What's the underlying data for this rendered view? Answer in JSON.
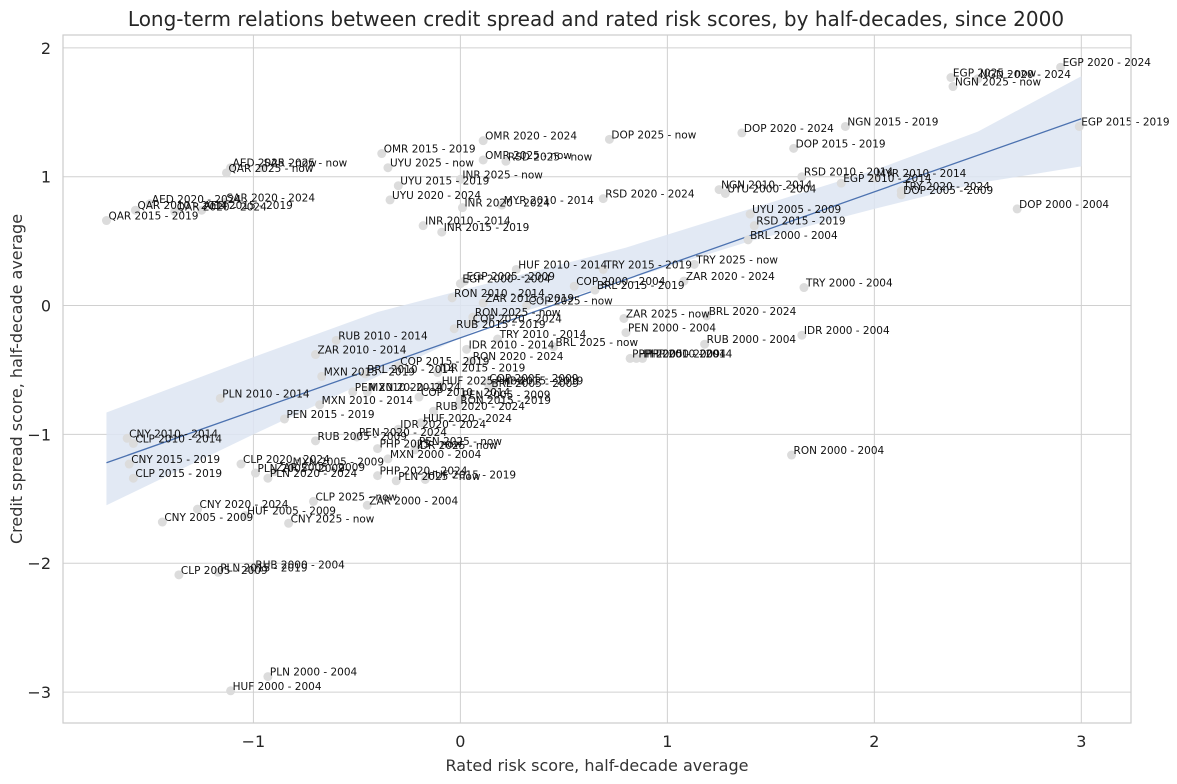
{
  "chart_data": {
    "type": "scatter",
    "title": "Long-term relations between credit spread and rated risk scores, by half-decades, since 2000",
    "xlabel": "Rated risk score, half-decade average",
    "ylabel": "Credit spread score, half-decade average",
    "xlim": [
      -1.92,
      3.24
    ],
    "ylim": [
      -3.24,
      2.1
    ],
    "xticks": [
      {
        "v": -1,
        "label": "−1"
      },
      {
        "v": 0,
        "label": "0"
      },
      {
        "v": 1,
        "label": "1"
      },
      {
        "v": 2,
        "label": "2"
      },
      {
        "v": 3,
        "label": "3"
      }
    ],
    "yticks": [
      {
        "v": 2,
        "label": "2"
      },
      {
        "v": 1,
        "label": "1"
      },
      {
        "v": 0,
        "label": "0"
      },
      {
        "v": -1,
        "label": "−1"
      },
      {
        "v": -2,
        "label": "−2"
      },
      {
        "v": -3,
        "label": "−3"
      }
    ],
    "grid": true,
    "regression": {
      "x0": -1.71,
      "y0": -1.22,
      "x1": 3.0,
      "y1": 1.45
    },
    "confidence_band": {
      "upper": [
        [
          -1.71,
          -0.83
        ],
        [
          -1.0,
          -0.4
        ],
        [
          -0.4,
          -0.05
        ],
        [
          0.2,
          0.2
        ],
        [
          0.8,
          0.45
        ],
        [
          1.4,
          0.75
        ],
        [
          2.0,
          1.05
        ],
        [
          2.5,
          1.35
        ],
        [
          3.0,
          1.78
        ]
      ],
      "lower": [
        [
          -1.71,
          -1.55
        ],
        [
          -1.0,
          -1.0
        ],
        [
          -0.4,
          -0.55
        ],
        [
          0.2,
          -0.1
        ],
        [
          0.8,
          0.2
        ],
        [
          1.4,
          0.5
        ],
        [
          2.0,
          0.75
        ],
        [
          2.5,
          0.95
        ],
        [
          3.0,
          1.08
        ]
      ]
    },
    "points": [
      {
        "label": "EGP 2020 - 2024",
        "x": 2.9,
        "y": 1.85
      },
      {
        "label": "NGN 2020 - 2024",
        "x": 2.5,
        "y": 1.76
      },
      {
        "label": "EGP 2025 - now",
        "x": 2.37,
        "y": 1.77
      },
      {
        "label": "NGN 2025 - now",
        "x": 2.38,
        "y": 1.7
      },
      {
        "label": "NGN 2015 - 2019",
        "x": 1.86,
        "y": 1.39
      },
      {
        "label": "EGP 2015 - 2019",
        "x": 2.99,
        "y": 1.39
      },
      {
        "label": "DOP 2020 - 2024",
        "x": 1.36,
        "y": 1.34
      },
      {
        "label": "DOP 2015 - 2019",
        "x": 1.61,
        "y": 1.22
      },
      {
        "label": "DOP 2025 - now",
        "x": 0.72,
        "y": 1.29
      },
      {
        "label": "OMR 2020 - 2024",
        "x": 0.11,
        "y": 1.28
      },
      {
        "label": "OMR 2015 - 2019",
        "x": -0.38,
        "y": 1.18
      },
      {
        "label": "OMR 2025 - now",
        "x": 0.11,
        "y": 1.13
      },
      {
        "label": "RSD 2025 - now",
        "x": 0.22,
        "y": 1.12
      },
      {
        "label": "UYU 2025 - now",
        "x": -0.35,
        "y": 1.07
      },
      {
        "label": "AED 2025 - now",
        "x": -1.11,
        "y": 1.07
      },
      {
        "label": "SAR 2025 - now",
        "x": -0.96,
        "y": 1.07
      },
      {
        "label": "QAR 2025 - now",
        "x": -1.13,
        "y": 1.03
      },
      {
        "label": "INR 2025 - now",
        "x": 0,
        "y": 0.98
      },
      {
        "label": "UYU 2015 - 2019",
        "x": -0.3,
        "y": 0.93
      },
      {
        "label": "RSD 2010 - 2014",
        "x": 1.65,
        "y": 1.0
      },
      {
        "label": "MYR 2010 - 2014",
        "x": 2.0,
        "y": 0.99
      },
      {
        "label": "EGP 2010 - 2014",
        "x": 1.84,
        "y": 0.95
      },
      {
        "label": "NGN 2010 - 2014",
        "x": 1.25,
        "y": 0.9
      },
      {
        "label": "UYU 2000 - 2004",
        "x": 1.28,
        "y": 0.87
      },
      {
        "label": "TRY 2020 - 2024",
        "x": 2.13,
        "y": 0.89
      },
      {
        "label": "DOP 2005 - 2009",
        "x": 2.13,
        "y": 0.86
      },
      {
        "label": "RSD 2020 - 2024",
        "x": 0.69,
        "y": 0.83
      },
      {
        "label": "UYU 2020 - 2024",
        "x": -0.34,
        "y": 0.82
      },
      {
        "label": "MYR 2010 - 2014",
        "x": 0.2,
        "y": 0.78
      },
      {
        "label": "INR 2020 - 2024",
        "x": 0.01,
        "y": 0.76
      },
      {
        "label": "AED 2020 - 2024",
        "x": -1.5,
        "y": 0.79
      },
      {
        "label": "SAR 2020 - 2024",
        "x": -1.14,
        "y": 0.8
      },
      {
        "label": "QAR 2010 - 2014",
        "x": -1.57,
        "y": 0.74
      },
      {
        "label": "QAR 2020 - 2024",
        "x": -1.38,
        "y": 0.73
      },
      {
        "label": "AED 2015 - 2019",
        "x": -1.25,
        "y": 0.74
      },
      {
        "label": "QAR 2015 - 2019",
        "x": -1.71,
        "y": 0.66
      },
      {
        "label": "UYU 2005 - 2009",
        "x": 1.4,
        "y": 0.71
      },
      {
        "label": "DOP 2000 - 2004",
        "x": 2.69,
        "y": 0.75
      },
      {
        "label": "INR 2010 - 2014",
        "x": -0.18,
        "y": 0.62
      },
      {
        "label": "RSD 2015 - 2019",
        "x": 1.42,
        "y": 0.62
      },
      {
        "label": "INR 2015 - 2019",
        "x": -0.09,
        "y": 0.57
      },
      {
        "label": "BRL 2000 - 2004",
        "x": 1.39,
        "y": 0.51
      },
      {
        "label": "TRY 2025 - now",
        "x": 1.13,
        "y": 0.32
      },
      {
        "label": "HUF 2010 - 2014",
        "x": 0.27,
        "y": 0.28
      },
      {
        "label": "TRY 2015 - 2019",
        "x": 0.69,
        "y": 0.28
      },
      {
        "label": "ZAR 2020 - 2024",
        "x": 1.08,
        "y": 0.19
      },
      {
        "label": "EGP 2005 - 2009",
        "x": 0.02,
        "y": 0.19
      },
      {
        "label": "EGP 2000 - 2004",
        "x": 0.0,
        "y": 0.17
      },
      {
        "label": "COP 2000 - 2004",
        "x": 0.55,
        "y": 0.15
      },
      {
        "label": "BRL 2015 - 2019",
        "x": 0.65,
        "y": 0.12
      },
      {
        "label": "TRY 2000 - 2004",
        "x": 1.66,
        "y": 0.14
      },
      {
        "label": "RON 2010 - 2014",
        "x": -0.04,
        "y": 0.06
      },
      {
        "label": "ZAR 2015 - 2019",
        "x": 0.11,
        "y": 0.02
      },
      {
        "label": "COP 2025 - now",
        "x": 0.32,
        "y": 0.0
      },
      {
        "label": "RON 2025 - now",
        "x": 0.06,
        "y": -0.09
      },
      {
        "label": "BRL 2020 - 2024",
        "x": 1.19,
        "y": -0.08
      },
      {
        "label": "ZAR 2025 - now",
        "x": 0.79,
        "y": -0.1
      },
      {
        "label": "COP 2020 - 2024",
        "x": 0.05,
        "y": -0.14
      },
      {
        "label": "RUB 2015 - 2019",
        "x": -0.03,
        "y": -0.18
      },
      {
        "label": "PEN 2000 - 2004",
        "x": 0.8,
        "y": -0.21
      },
      {
        "label": "IDR 2000 - 2004",
        "x": 1.65,
        "y": -0.23
      },
      {
        "label": "TRY 2010 - 2014",
        "x": 0.18,
        "y": -0.26
      },
      {
        "label": "RUB 2010 - 2014",
        "x": -0.6,
        "y": -0.27
      },
      {
        "label": "RUB 2000 - 2004",
        "x": 1.18,
        "y": -0.3
      },
      {
        "label": "BRL 2025 - now",
        "x": 0.45,
        "y": -0.32
      },
      {
        "label": "IDR 2010 - 2014",
        "x": 0.03,
        "y": -0.34
      },
      {
        "label": "ZAR 2010 - 2014",
        "x": -0.7,
        "y": -0.38
      },
      {
        "label": "PHP 2005 - 2009",
        "x": 0.82,
        "y": -0.41
      },
      {
        "label": "PHP 2000 - 2004",
        "x": 0.85,
        "y": -0.41
      },
      {
        "label": "PHP 2010 - 2014",
        "x": 0.88,
        "y": -0.41
      },
      {
        "label": "RON 2020 - 2024",
        "x": 0.05,
        "y": -0.43
      },
      {
        "label": "COP 2015 - 2019",
        "x": -0.3,
        "y": -0.47
      },
      {
        "label": "IDR 2015 - 2019",
        "x": -0.11,
        "y": -0.52
      },
      {
        "label": "MXN 2015 - 2019",
        "x": -0.67,
        "y": -0.55
      },
      {
        "label": "BRL 2010 - 2014",
        "x": -0.46,
        "y": -0.53
      },
      {
        "label": "COP 2005 - 2009",
        "x": 0.13,
        "y": -0.6
      },
      {
        "label": "BRL 2005 - 2009",
        "x": 0.14,
        "y": -0.64
      },
      {
        "label": "HUF 2025 - now",
        "x": -0.1,
        "y": -0.62
      },
      {
        "label": "PHP 2015 - 2019",
        "x": 0.16,
        "y": -0.62
      },
      {
        "label": "PEN 2010 - 2014",
        "x": -0.52,
        "y": -0.67
      },
      {
        "label": "MXN 2020 - 2024",
        "x": -0.45,
        "y": -0.67
      },
      {
        "label": "COP 2010 - 2014",
        "x": -0.2,
        "y": -0.71
      },
      {
        "label": "PEN 2005 - 2009",
        "x": 0.0,
        "y": -0.73
      },
      {
        "label": "PLN 2010 - 2014",
        "x": -1.16,
        "y": -0.72
      },
      {
        "label": "MXN 2010 - 2014",
        "x": -0.68,
        "y": -0.77
      },
      {
        "label": "RON 2015 - 2019",
        "x": -0.01,
        "y": -0.77
      },
      {
        "label": "RUB 2020 - 2024",
        "x": -0.13,
        "y": -0.82
      },
      {
        "label": "PEN 2015 - 2019",
        "x": -0.85,
        "y": -0.88
      },
      {
        "label": "HUF 2020 - 2024",
        "x": -0.19,
        "y": -0.91
      },
      {
        "label": "IDR 2020 - 2024",
        "x": -0.3,
        "y": -0.96
      },
      {
        "label": "CNY 2010 - 2014",
        "x": -1.61,
        "y": -1.03
      },
      {
        "label": "CLP 2010 - 2014",
        "x": -1.58,
        "y": -1.07
      },
      {
        "label": "PEN 2020 - 2024",
        "x": -0.5,
        "y": -1.02
      },
      {
        "label": "RUB 2005 - 2009",
        "x": -0.7,
        "y": -1.05
      },
      {
        "label": "PEN 2025 - now",
        "x": -0.21,
        "y": -1.09
      },
      {
        "label": "PHP 2025 - now",
        "x": -0.4,
        "y": -1.11
      },
      {
        "label": "IDR 2025 - now",
        "x": -0.22,
        "y": -1.12
      },
      {
        "label": "RON 2000 - 2004",
        "x": 1.6,
        "y": -1.16
      },
      {
        "label": "MXN 2000 - 2004",
        "x": -0.35,
        "y": -1.19
      },
      {
        "label": "CNY 2015 - 2019",
        "x": -1.6,
        "y": -1.23
      },
      {
        "label": "CLP 2020 - 2024",
        "x": -1.06,
        "y": -1.23
      },
      {
        "label": "MXN 2005 - 2009",
        "x": -0.82,
        "y": -1.25
      },
      {
        "label": "PLN 2005 - 2009",
        "x": -0.99,
        "y": -1.3
      },
      {
        "label": "ZAR 2005 - 2009",
        "x": -0.9,
        "y": -1.29
      },
      {
        "label": "CLP 2015 - 2019",
        "x": -1.58,
        "y": -1.34
      },
      {
        "label": "PLN 2020 - 2024",
        "x": -0.93,
        "y": -1.34
      },
      {
        "label": "PHP 2020 - 2024",
        "x": -0.4,
        "y": -1.32
      },
      {
        "label": "PLN 2025 - now",
        "x": -0.31,
        "y": -1.36
      },
      {
        "label": "HUF 2015 - 2019",
        "x": -0.17,
        "y": -1.35
      },
      {
        "label": "CLP 2025 - now",
        "x": -0.71,
        "y": -1.52
      },
      {
        "label": "ZAR 2000 - 2004",
        "x": -0.45,
        "y": -1.55
      },
      {
        "label": "CNY 2020 - 2024",
        "x": -1.27,
        "y": -1.58
      },
      {
        "label": "HUF 2005 - 2009",
        "x": -1.04,
        "y": -1.63
      },
      {
        "label": "CNY 2005 - 2009",
        "x": -1.44,
        "y": -1.68
      },
      {
        "label": "CNY 2025 - now",
        "x": -0.83,
        "y": -1.69
      },
      {
        "label": "CLP 2005 - 2009",
        "x": -1.36,
        "y": -2.09
      },
      {
        "label": "RUB 2000 - 2004",
        "x": -1.0,
        "y": -2.05
      },
      {
        "label": "PLN 2015 - 2019",
        "x": -1.17,
        "y": -2.07
      },
      {
        "label": "PLN 2000 - 2004",
        "x": -0.93,
        "y": -2.88
      },
      {
        "label": "HUF 2000 - 2004",
        "x": -1.11,
        "y": -2.99
      }
    ]
  }
}
